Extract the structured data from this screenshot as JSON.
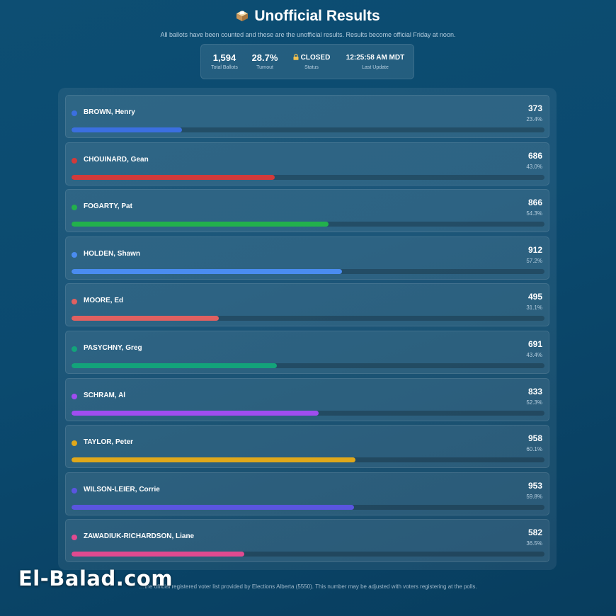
{
  "header": {
    "title": "Unofficial Results",
    "subtitle": "All ballots have been counted and these are the unofficial results. Results become official Friday at noon."
  },
  "stats": [
    {
      "value": "1,594",
      "label": "Total Ballots"
    },
    {
      "value": "28.7%",
      "label": "Turnout"
    },
    {
      "value": "CLOSED",
      "label": "Status"
    },
    {
      "value": "12:25:58 AM MDT",
      "label": "Last Update"
    }
  ],
  "candidates": [
    {
      "name": "BROWN, Henry",
      "votes": "373",
      "percent": "23.4%",
      "share": 0.234,
      "color": "#3b6fe0"
    },
    {
      "name": "CHOUINARD, Gean",
      "votes": "686",
      "percent": "43.0%",
      "share": 0.43,
      "color": "#d23a3a"
    },
    {
      "name": "FOGARTY, Pat",
      "votes": "866",
      "percent": "54.3%",
      "share": 0.543,
      "color": "#22b14c"
    },
    {
      "name": "HOLDEN, Shawn",
      "votes": "912",
      "percent": "57.2%",
      "share": 0.572,
      "color": "#4a8cf0"
    },
    {
      "name": "MOORE, Ed",
      "votes": "495",
      "percent": "31.1%",
      "share": 0.311,
      "color": "#e06060"
    },
    {
      "name": "PASYCHNY, Greg",
      "votes": "691",
      "percent": "43.4%",
      "share": 0.434,
      "color": "#13a37a"
    },
    {
      "name": "SCHRAM, Al",
      "votes": "833",
      "percent": "52.3%",
      "share": 0.523,
      "color": "#a04df0"
    },
    {
      "name": "TAYLOR, Peter",
      "votes": "958",
      "percent": "60.1%",
      "share": 0.601,
      "color": "#e0a81a"
    },
    {
      "name": "WILSON-LEIER, Corrie",
      "votes": "953",
      "percent": "59.8%",
      "share": 0.598,
      "color": "#5a55e0"
    },
    {
      "name": "ZAWADIUK-RICHARDSON, Liane",
      "votes": "582",
      "percent": "36.5%",
      "share": 0.365,
      "color": "#e04a90"
    }
  ],
  "footnote": "…the official registered voter list provided by Elections Alberta (5550). This number may be adjusted with voters registering at the polls.",
  "watermark": "El-Balad.com"
}
